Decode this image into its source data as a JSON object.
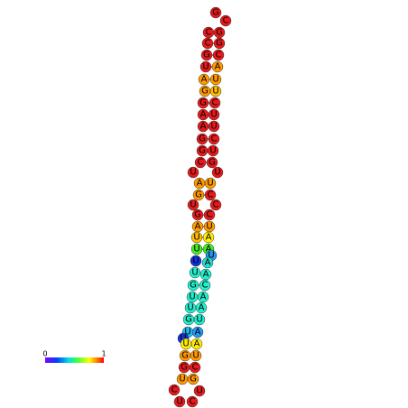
{
  "nodes": [
    {
      "label": "G",
      "color": "#e41a1c"
    },
    {
      "label": "C",
      "color": "#e41a1c"
    },
    {
      "label": "C",
      "color": "#e41a1c"
    },
    {
      "label": "G",
      "color": "#e41a1c"
    },
    {
      "label": "C",
      "color": "#e41a1c"
    },
    {
      "label": "G",
      "color": "#e41a1c"
    },
    {
      "label": "G",
      "color": "#e41a1c"
    },
    {
      "label": "C",
      "color": "#e41a1c"
    },
    {
      "label": "U",
      "color": "#e41a1c"
    },
    {
      "label": "A",
      "color": "#ff9900"
    },
    {
      "label": "A",
      "color": "#ff9900"
    },
    {
      "label": "U",
      "color": "#ff9900"
    },
    {
      "label": "G",
      "color": "#ff9900"
    },
    {
      "label": "U",
      "color": "#ffbb00"
    },
    {
      "label": "G",
      "color": "#e41a1c"
    },
    {
      "label": "C",
      "color": "#e41a1c"
    },
    {
      "label": "A",
      "color": "#e41a1c"
    },
    {
      "label": "U",
      "color": "#e41a1c"
    },
    {
      "label": "A",
      "color": "#e41a1c"
    },
    {
      "label": "U",
      "color": "#e41a1c"
    },
    {
      "label": "G",
      "color": "#e41a1c"
    },
    {
      "label": "C",
      "color": "#e41a1c"
    },
    {
      "label": "G",
      "color": "#e41a1c"
    },
    {
      "label": "U",
      "color": "#e41a1c"
    },
    {
      "label": "C",
      "color": "#e41a1c"
    },
    {
      "label": "G",
      "color": "#e41a1c"
    },
    {
      "label": "U",
      "color": "#e41a1c"
    },
    {
      "label": "U",
      "color": "#e41a1c"
    },
    {
      "label": "A",
      "color": "#ff9900"
    },
    {
      "label": "U",
      "color": "#ff9900"
    },
    {
      "label": "G",
      "color": "#ff9900"
    },
    {
      "label": "C",
      "color": "#e41a1c"
    },
    {
      "label": "U",
      "color": "#e41a1c"
    },
    {
      "label": "C",
      "color": "#e41a1c"
    },
    {
      "label": "G",
      "color": "#e41a1c"
    },
    {
      "label": "C",
      "color": "#e41a1c"
    },
    {
      "label": "A",
      "color": "#ff9900"
    },
    {
      "label": "U",
      "color": "#ff9900"
    },
    {
      "label": "U",
      "color": "#ffbb00"
    },
    {
      "label": "A",
      "color": "#ffee00"
    },
    {
      "label": "U",
      "color": "#44ee22"
    },
    {
      "label": "A",
      "color": "#44ee22"
    },
    {
      "label": "U",
      "color": "#1133dd"
    },
    {
      "label": "U",
      "color": "#2299ee"
    },
    {
      "label": "A",
      "color": "#22ddcc"
    },
    {
      "label": "U",
      "color": "#22eecc"
    },
    {
      "label": "A",
      "color": "#22eecc"
    },
    {
      "label": "G",
      "color": "#22eecc"
    },
    {
      "label": "C",
      "color": "#22eecc"
    },
    {
      "label": "U",
      "color": "#22eecc"
    },
    {
      "label": "A",
      "color": "#22eecc"
    },
    {
      "label": "U",
      "color": "#22eecc"
    },
    {
      "label": "A",
      "color": "#22eecc"
    },
    {
      "label": "G",
      "color": "#22eecc"
    },
    {
      "label": "U",
      "color": "#22eecc"
    },
    {
      "label": "U",
      "color": "#22bbee"
    },
    {
      "label": "A",
      "color": "#2299ee"
    },
    {
      "label": "U",
      "color": "#1133dd"
    },
    {
      "label": "U",
      "color": "#ffee00"
    },
    {
      "label": "A",
      "color": "#ffee00"
    },
    {
      "label": "G",
      "color": "#ff9900"
    },
    {
      "label": "U",
      "color": "#ff9900"
    },
    {
      "label": "G",
      "color": "#e41a1c"
    },
    {
      "label": "C",
      "color": "#e41a1c"
    },
    {
      "label": "U",
      "color": "#ff9900"
    },
    {
      "label": "G",
      "color": "#ff9900"
    },
    {
      "label": "C",
      "color": "#e41a1c"
    },
    {
      "label": "U",
      "color": "#e41a1c"
    },
    {
      "label": "U",
      "color": "#e41a1c"
    },
    {
      "label": "C",
      "color": "#e41a1c"
    }
  ],
  "colorbar": {
    "min": "0",
    "max": "1"
  }
}
